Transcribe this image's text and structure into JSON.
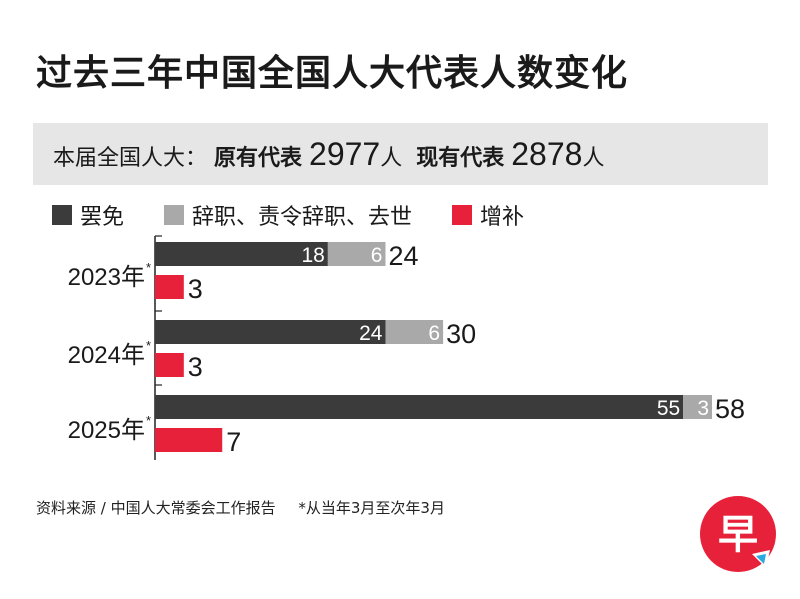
{
  "title": "过去三年中国全国人大代表人数变化",
  "subtitle": {
    "prefix": "本届全国人大：",
    "original_label": "原有代表",
    "original_value": "2977",
    "original_unit": "人",
    "current_label": "现有代表",
    "current_value": "2878",
    "current_unit": "人"
  },
  "legend": [
    {
      "label": "罢免",
      "color": "#3b3b3b"
    },
    {
      "label": "辞职、责令辞职、去世",
      "color": "#a9a9a9"
    },
    {
      "label": "增补",
      "color": "#e8213a"
    }
  ],
  "chart_data": {
    "type": "bar",
    "orientation": "horizontal",
    "stacked": true,
    "categories": [
      "2023年*",
      "2024年*",
      "2025年*"
    ],
    "series": [
      {
        "name": "罢免",
        "values": [
          18,
          24,
          55
        ],
        "color": "#3b3b3b",
        "group": "decrease"
      },
      {
        "name": "辞职、责令辞职、去世",
        "values": [
          6,
          6,
          3
        ],
        "color": "#a9a9a9",
        "group": "decrease"
      },
      {
        "name": "增补",
        "values": [
          3,
          3,
          7
        ],
        "color": "#e8213a",
        "group": "increase"
      }
    ],
    "totals": {
      "decrease": [
        24,
        30,
        58
      ],
      "increase": [
        3,
        3,
        7
      ]
    },
    "xlim": [
      0,
      58
    ],
    "grid": false,
    "legend_position": "top-left"
  },
  "source": {
    "text": "资料来源 / 中国人大常委会工作报告",
    "note": "*从当年3月至次年3月"
  },
  "logo": {
    "glyph": "早"
  }
}
